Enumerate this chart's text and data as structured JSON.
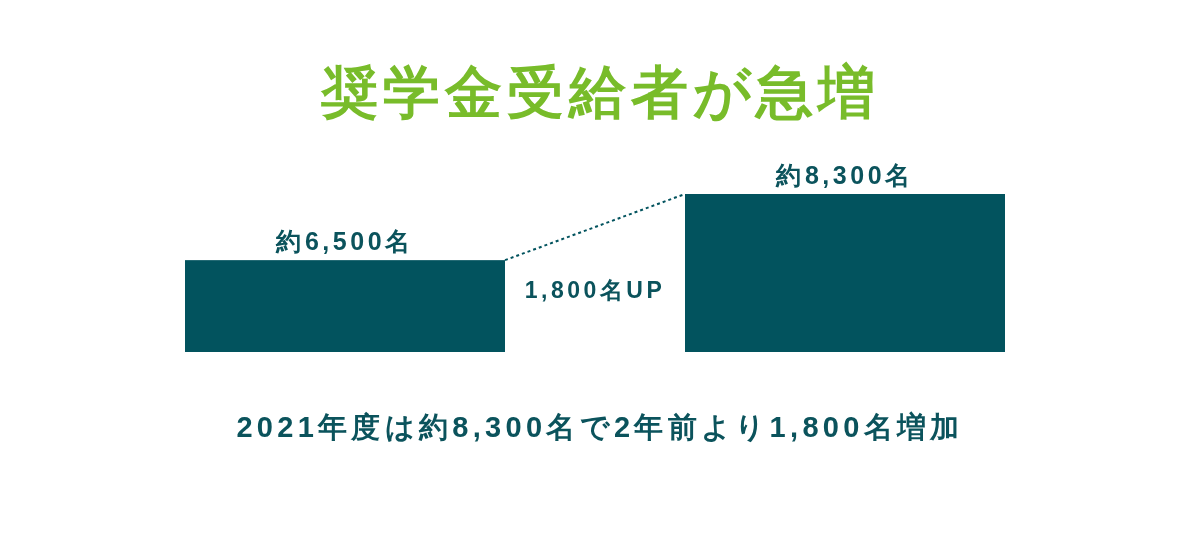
{
  "chart_data": {
    "type": "bar",
    "title": "奨学金受給者が急増",
    "categories": [
      null,
      null
    ],
    "values": [
      6500,
      8300
    ],
    "color": "#02535e",
    "value_labels": [
      "約6,500名",
      "約8,300名"
    ],
    "ylim": [
      4000,
      8300
    ],
    "annotations": [
      "1,800名UP",
      "2021年度は約8,300名で2年前より1,800名増加"
    ]
  }
}
